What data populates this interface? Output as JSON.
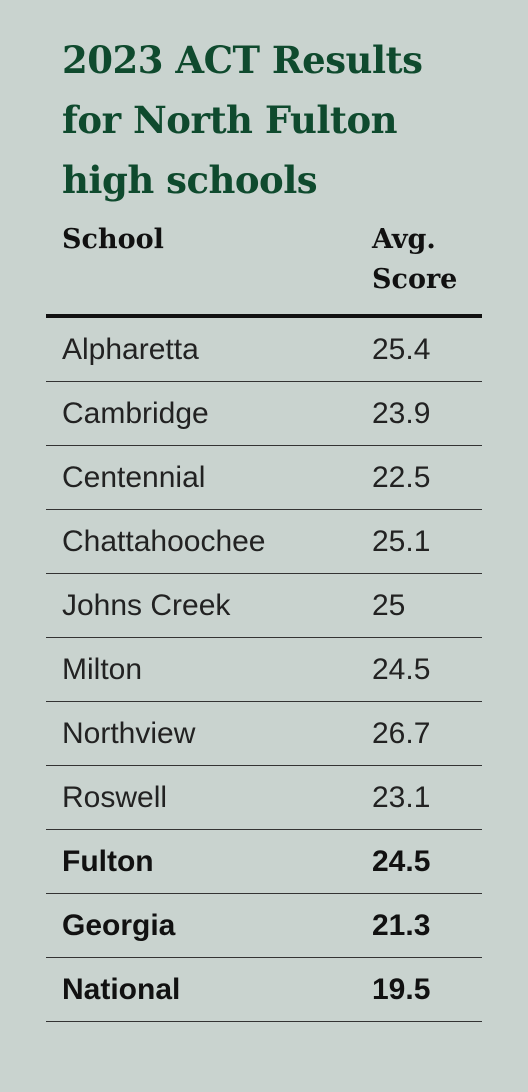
{
  "title": "2023 ACT Results for North Fulton high schools",
  "table": {
    "header": [
      "School",
      "Avg. Score"
    ],
    "rows": [
      [
        "Alpharetta",
        25.4
      ],
      [
        "Cambridge",
        23.9
      ],
      [
        "Centennial",
        22.5
      ],
      [
        "Chattahoochee",
        25.1
      ],
      [
        "Johns Creek",
        25
      ],
      [
        "Milton",
        24.5
      ],
      [
        "Northview",
        26.7
      ],
      [
        "Roswell",
        23.1
      ]
    ],
    "summary_rows": [
      [
        "Fulton",
        24.5
      ],
      [
        "Georgia",
        21.3
      ],
      [
        "National",
        19.5
      ]
    ]
  }
}
